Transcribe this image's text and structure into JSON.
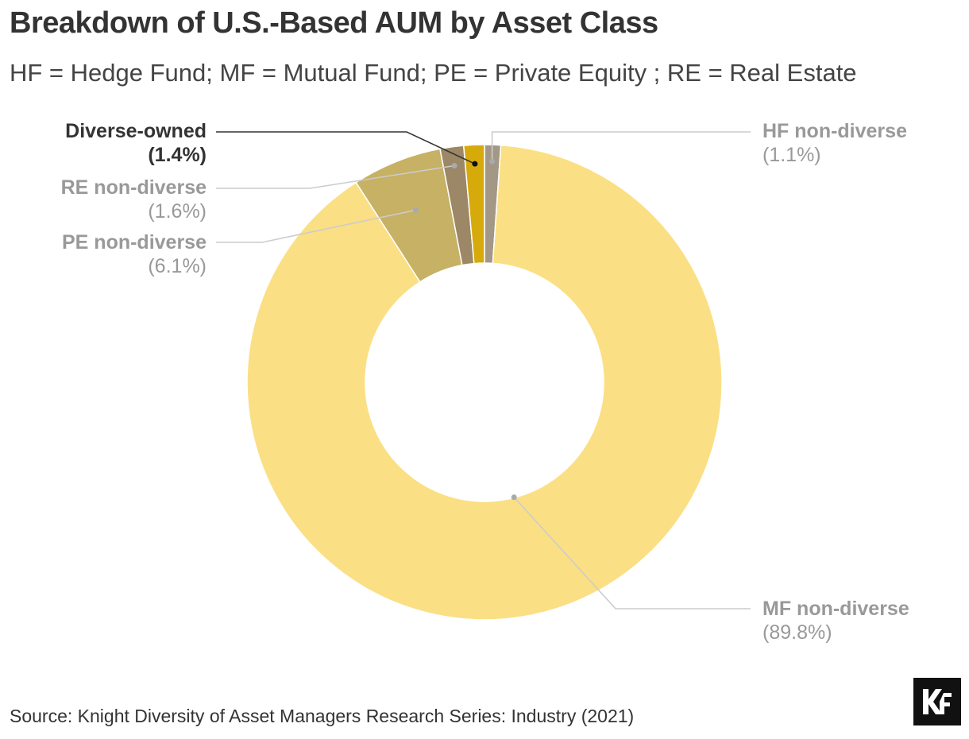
{
  "title": "Breakdown of U.S.-Based AUM by Asset Class",
  "subtitle": "HF = Hedge Fund; MF = Mutual Fund; PE = Private Equity ; RE = Real Estate",
  "source": "Source: Knight Diversity of Asset Managers Research Series: Industry (2021)",
  "logo": "KF",
  "chart_data": {
    "type": "pie",
    "donut": true,
    "slices": [
      {
        "label": "HF non-diverse",
        "value_label": "(1.1%)",
        "value": 1.1,
        "color": "#a39886",
        "highlight": false
      },
      {
        "label": "MF non-diverse",
        "value_label": "(89.8%)",
        "value": 89.8,
        "color": "#fbdf84",
        "highlight": false
      },
      {
        "label": "PE non-diverse",
        "value_label": "(6.1%)",
        "value": 6.1,
        "color": "#c6b164",
        "highlight": false
      },
      {
        "label": "RE non-diverse",
        "value_label": "(1.6%)",
        "value": 1.6,
        "color": "#9c8766",
        "highlight": false
      },
      {
        "label": "Diverse-owned",
        "value_label": "(1.4%)",
        "value": 1.4,
        "color": "#d7aa0c",
        "highlight": true
      }
    ]
  }
}
